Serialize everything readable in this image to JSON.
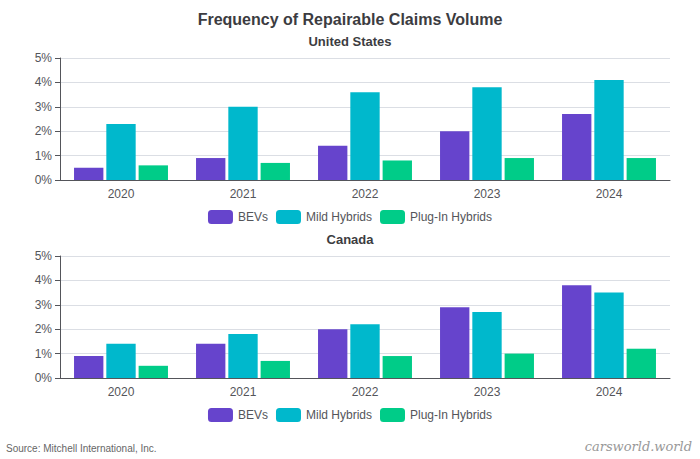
{
  "chart_data": [
    {
      "type": "bar",
      "title": "Frequency of Repairable Claims Volume",
      "subtitle": "United States",
      "categories": [
        "2020",
        "2021",
        "2022",
        "2023",
        "2024"
      ],
      "series": [
        {
          "name": "BEVs",
          "color": "#6644cc",
          "values": [
            0.005,
            0.009,
            0.014,
            0.02,
            0.027
          ]
        },
        {
          "name": "Mild Hybrids",
          "color": "#00b8cc",
          "values": [
            0.023,
            0.03,
            0.036,
            0.038,
            0.041
          ]
        },
        {
          "name": "Plug-In Hybrids",
          "color": "#00cc88",
          "values": [
            0.006,
            0.007,
            0.008,
            0.009,
            0.009
          ]
        }
      ],
      "ylim": [
        0,
        0.05
      ],
      "yticks": [
        {
          "value": 0,
          "label": "0%"
        },
        {
          "value": 0.01,
          "label": "1%"
        },
        {
          "value": 0.02,
          "label": "2%"
        },
        {
          "value": 0.03,
          "label": "3%"
        },
        {
          "value": 0.04,
          "label": "4%"
        },
        {
          "value": 0.05,
          "label": "5%"
        }
      ],
      "grid": true,
      "legend": "bottom"
    },
    {
      "type": "bar",
      "subtitle": "Canada",
      "categories": [
        "2020",
        "2021",
        "2022",
        "2023",
        "2024"
      ],
      "series": [
        {
          "name": "BEVs",
          "color": "#6644cc",
          "values": [
            0.009,
            0.014,
            0.02,
            0.029,
            0.038
          ]
        },
        {
          "name": "Mild Hybrids",
          "color": "#00b8cc",
          "values": [
            0.014,
            0.018,
            0.022,
            0.027,
            0.035
          ]
        },
        {
          "name": "Plug-In Hybrids",
          "color": "#00cc88",
          "values": [
            0.005,
            0.007,
            0.009,
            0.01,
            0.012
          ]
        }
      ],
      "ylim": [
        0,
        0.05
      ],
      "yticks": [
        {
          "value": 0,
          "label": "0%"
        },
        {
          "value": 0.01,
          "label": "1%"
        },
        {
          "value": 0.02,
          "label": "2%"
        },
        {
          "value": 0.03,
          "label": "3%"
        },
        {
          "value": 0.04,
          "label": "4%"
        },
        {
          "value": 0.05,
          "label": "5%"
        }
      ],
      "grid": true,
      "legend": "bottom",
      "annotations": [
        "Source: Mitchell International, Inc.",
        "carsworld.world"
      ]
    }
  ]
}
